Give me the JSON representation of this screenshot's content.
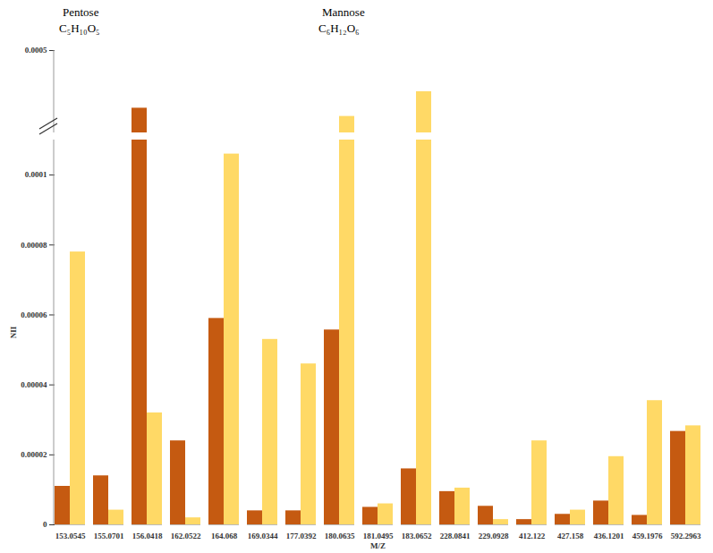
{
  "chart_data": {
    "type": "bar",
    "x_label": "M/Z",
    "y_label": "NII",
    "annotations": [
      "Pentose",
      "C₅H₁₀O₅",
      "Mannose",
      "C₆H₁₂O₆"
    ],
    "categories": [
      "153.0545",
      "155.0701",
      "156.0418",
      "162.0522",
      "164.068",
      "169.0344",
      "177.0392",
      "180.0635",
      "181.0495",
      "183.0652",
      "228.0841",
      "229.0928",
      "412.122",
      "427.158",
      "436.1201",
      "459.1976",
      "592.2963"
    ],
    "series": [
      {
        "color": "#c55a11",
        "values": [
          1.1e-05,
          1.4e-05,
          0.00036,
          2.4e-05,
          5.9e-05,
          4e-06,
          4e-06,
          5.57e-05,
          5e-06,
          1.6e-05,
          9.5e-06,
          5.3e-06,
          1.5e-06,
          3e-06,
          6.8e-06,
          2.7e-06,
          2.67e-05
        ]
      },
      {
        "color": "#ffd966",
        "values": [
          7.8e-05,
          4.2e-06,
          3.2e-05,
          2e-06,
          0.000106,
          5.3e-05,
          4.6e-05,
          0.00034,
          6e-06,
          0.0004,
          1.05e-05,
          1.5e-06,
          2.4e-05,
          4.2e-06,
          1.95e-05,
          3.55e-05,
          2.83e-05
        ]
      }
    ],
    "ylim": [
      0,
      0.0005
    ],
    "ybreak": [
      0.00011,
      0.0003
    ],
    "yticks": [
      0,
      {
        "value": 2e-05,
        "label": "0.00002"
      },
      {
        "value": 4e-05,
        "label": "0.00004"
      },
      {
        "value": 6e-05,
        "label": "0.00006"
      },
      {
        "value": 8e-05,
        "label": "0.00008"
      },
      {
        "value": 0.0001,
        "label": "0.0001"
      },
      {
        "value": 0.0005,
        "label": "0.0005"
      }
    ],
    "grid": false
  }
}
